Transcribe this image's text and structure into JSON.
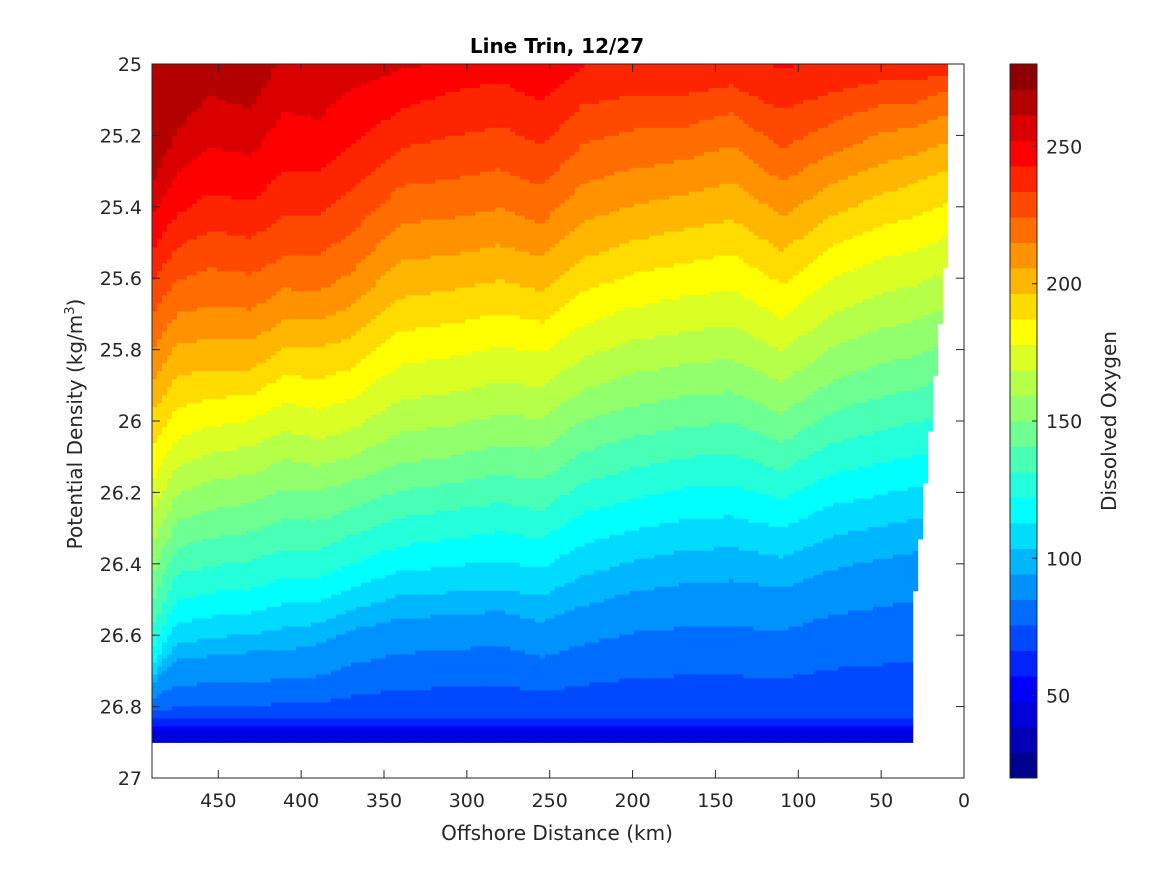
{
  "chart_data": {
    "type": "contour",
    "title": "Line Trin, 12/27",
    "xlabel": "Offshore Distance (km)",
    "ylabel": "Potential Density (kg/m",
    "ylabel_sup": "3",
    "ylabel_end": ")",
    "colorbar_label": "Dissolved Oxygen",
    "xlim": [
      490,
      0
    ],
    "x_reversed": true,
    "ylim": [
      25,
      27
    ],
    "y_reversed": true,
    "clim": [
      20,
      280
    ],
    "x_ticks": [
      {
        "value": 450,
        "label": "450"
      },
      {
        "value": 400,
        "label": "400"
      },
      {
        "value": 350,
        "label": "350"
      },
      {
        "value": 300,
        "label": "300"
      },
      {
        "value": 250,
        "label": "250"
      },
      {
        "value": 200,
        "label": "200"
      },
      {
        "value": 150,
        "label": "150"
      },
      {
        "value": 100,
        "label": "100"
      },
      {
        "value": 50,
        "label": "50"
      },
      {
        "value": 0,
        "label": "0"
      }
    ],
    "y_ticks": [
      {
        "value": 25.0,
        "label": "25"
      },
      {
        "value": 25.2,
        "label": "25.2"
      },
      {
        "value": 25.4,
        "label": "25.4"
      },
      {
        "value": 25.6,
        "label": "25.6"
      },
      {
        "value": 25.8,
        "label": "25.8"
      },
      {
        "value": 26.0,
        "label": "26"
      },
      {
        "value": 26.2,
        "label": "26.2"
      },
      {
        "value": 26.4,
        "label": "26.4"
      },
      {
        "value": 26.6,
        "label": "26.6"
      },
      {
        "value": 26.8,
        "label": "26.8"
      },
      {
        "value": 27.0,
        "label": "27"
      }
    ],
    "colorbar_ticks": [
      {
        "value": 50,
        "label": "50"
      },
      {
        "value": 100,
        "label": "100"
      },
      {
        "value": 150,
        "label": "150"
      },
      {
        "value": 200,
        "label": "200"
      },
      {
        "value": 250,
        "label": "250"
      }
    ],
    "levels": [
      30,
      40,
      50,
      60,
      70,
      80,
      90,
      100,
      110,
      120,
      130,
      140,
      150,
      160,
      170,
      180,
      190,
      200,
      210,
      220,
      230,
      240,
      250,
      260,
      270
    ],
    "colormap": [
      "#00008f",
      "#0000b5",
      "#0000db",
      "#0000ff",
      "#0024ff",
      "#0049ff",
      "#006dff",
      "#0092ff",
      "#00b6ff",
      "#00dbff",
      "#00ffff",
      "#24ffdb",
      "#49ffb6",
      "#6dff92",
      "#92ff6d",
      "#b6ff49",
      "#dbff24",
      "#ffff00",
      "#ffdb00",
      "#ffb600",
      "#ff9200",
      "#ff6d00",
      "#ff4900",
      "#ff2400",
      "#ff0000",
      "#db0000",
      "#b50000",
      "#8f0000"
    ],
    "data_x_extent": [
      490,
      10
    ],
    "data_y_extent": [
      25,
      26.9
    ],
    "stations": [
      {
        "x": 490,
        "isopycnals": [
          25.33,
          25.5,
          25.66,
          25.83,
          25.98,
          26.15,
          26.29,
          26.43,
          26.56,
          26.66,
          26.71,
          26.74,
          26.8
        ]
      },
      {
        "x": 475,
        "isopycnals": [
          25.18,
          25.4,
          25.57,
          25.73,
          25.88,
          26.03,
          26.16,
          26.28,
          26.4,
          26.52,
          26.62,
          26.68,
          26.79
        ]
      },
      {
        "x": 455,
        "isopycnals": [
          25.08,
          25.34,
          25.53,
          25.71,
          25.86,
          26.0,
          26.12,
          26.25,
          26.38,
          26.5,
          26.6,
          26.67,
          26.78
        ]
      },
      {
        "x": 430,
        "isopycnals": [
          25.12,
          25.36,
          25.55,
          25.72,
          25.86,
          25.98,
          26.1,
          26.23,
          26.36,
          26.49,
          26.59,
          26.66,
          26.78
        ]
      },
      {
        "x": 410,
        "isopycnals": [
          24.95,
          25.27,
          25.5,
          25.66,
          25.8,
          25.93,
          26.06,
          26.19,
          26.33,
          26.46,
          26.57,
          26.66,
          26.77
        ]
      },
      {
        "x": 390,
        "isopycnals": [
          24.98,
          25.28,
          25.5,
          25.67,
          25.8,
          25.95,
          26.08,
          26.2,
          26.33,
          26.46,
          26.56,
          26.64,
          26.77
        ]
      },
      {
        "x": 370,
        "isopycnals": [
          24.9,
          25.2,
          25.43,
          25.62,
          25.77,
          25.92,
          26.06,
          26.17,
          26.29,
          26.42,
          26.52,
          26.6,
          26.74
        ]
      },
      {
        "x": 340,
        "isopycnals": [
          24.9,
          25.1,
          25.3,
          25.48,
          25.66,
          25.82,
          25.98,
          26.12,
          26.24,
          26.37,
          26.48,
          26.57,
          26.71
        ]
      },
      {
        "x": 310,
        "isopycnals": [
          24.9,
          25.05,
          25.28,
          25.47,
          25.64,
          25.8,
          25.96,
          26.1,
          26.22,
          26.35,
          26.47,
          26.56,
          26.7
        ]
      },
      {
        "x": 280,
        "isopycnals": [
          24.9,
          25.02,
          25.25,
          25.44,
          25.61,
          25.77,
          25.93,
          26.07,
          26.2,
          26.33,
          26.46,
          26.55,
          26.69
        ]
      },
      {
        "x": 255,
        "isopycnals": [
          24.9,
          25.08,
          25.3,
          25.48,
          25.64,
          25.79,
          25.94,
          26.08,
          26.22,
          26.35,
          26.48,
          26.58,
          26.72
        ]
      },
      {
        "x": 230,
        "isopycnals": [
          24.9,
          24.98,
          25.18,
          25.37,
          25.55,
          25.71,
          25.86,
          26.0,
          26.14,
          26.28,
          26.42,
          26.54,
          26.69
        ]
      },
      {
        "x": 200,
        "isopycnals": [
          24.9,
          24.98,
          25.14,
          25.33,
          25.5,
          25.66,
          25.81,
          25.96,
          26.1,
          26.24,
          26.38,
          26.5,
          26.66
        ]
      },
      {
        "x": 170,
        "isopycnals": [
          24.9,
          24.98,
          25.14,
          25.3,
          25.47,
          25.63,
          25.79,
          25.93,
          26.07,
          26.21,
          26.35,
          26.48,
          26.65
        ]
      },
      {
        "x": 140,
        "isopycnals": [
          24.9,
          24.98,
          25.1,
          25.26,
          25.44,
          25.61,
          25.77,
          25.92,
          26.06,
          26.2,
          26.34,
          26.47,
          26.65
        ]
      },
      {
        "x": 110,
        "isopycnals": [
          24.9,
          24.98,
          25.2,
          25.36,
          25.53,
          25.69,
          25.84,
          25.98,
          26.11,
          26.24,
          26.37,
          26.49,
          26.66
        ]
      },
      {
        "x": 80,
        "isopycnals": [
          24.9,
          24.98,
          25.13,
          25.28,
          25.43,
          25.58,
          25.74,
          25.89,
          26.03,
          26.17,
          26.31,
          26.44,
          26.62
        ]
      },
      {
        "x": 50,
        "isopycnals": [
          24.9,
          24.98,
          25.08,
          25.22,
          25.37,
          25.52,
          25.68,
          25.84,
          25.99,
          26.14,
          26.28,
          26.41,
          26.6
        ]
      },
      {
        "x": 30,
        "isopycnals": [
          24.9,
          24.98,
          25.08,
          25.2,
          25.34,
          25.5,
          25.66,
          25.82,
          25.97,
          26.12,
          26.26,
          26.39,
          26.58
        ]
      },
      {
        "x": 10,
        "isopycnals": [
          24.9,
          24.98,
          25.05,
          25.16,
          25.3,
          25.46,
          25.62,
          25.78,
          25.94,
          26.1,
          26.25,
          26.38,
          26.56
        ]
      }
    ],
    "isopycnal_values": [
      262,
      245,
      228,
      212,
      196,
      180,
      165,
      150,
      135,
      120,
      105,
      92,
      80
    ],
    "deep_values": [
      [
        26.83,
        68
      ],
      [
        26.86,
        52
      ],
      [
        26.9,
        38
      ]
    ]
  }
}
